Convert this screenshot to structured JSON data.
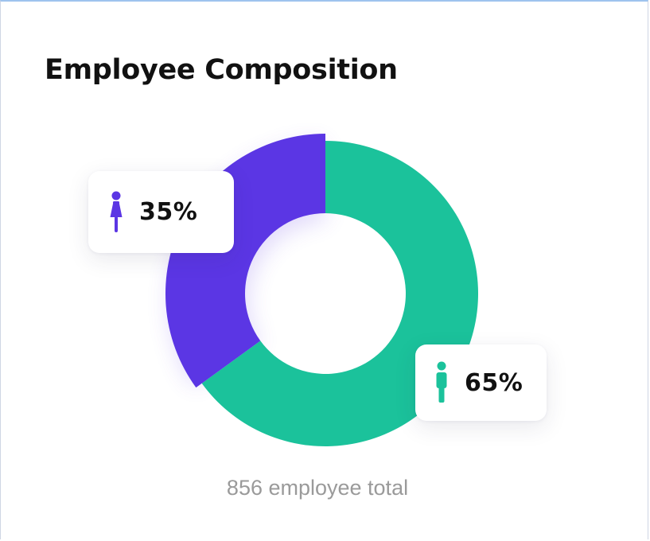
{
  "card": {
    "title": "Employee Composition",
    "total_text": "856 employee total"
  },
  "colors": {
    "female": "#5b36e4",
    "male": "#1bc29b",
    "title": "#111111",
    "muted": "#9a9a9a"
  },
  "icons": {
    "female": "female-person-icon",
    "male": "male-person-icon"
  },
  "chart_data": {
    "type": "pie",
    "variant": "donut",
    "title": "Employee Composition",
    "total": 856,
    "series": [
      {
        "name": "female",
        "value": 35,
        "label": "35%",
        "color": "#5b36e4"
      },
      {
        "name": "male",
        "value": 65,
        "label": "65%",
        "color": "#1bc29b"
      }
    ]
  }
}
